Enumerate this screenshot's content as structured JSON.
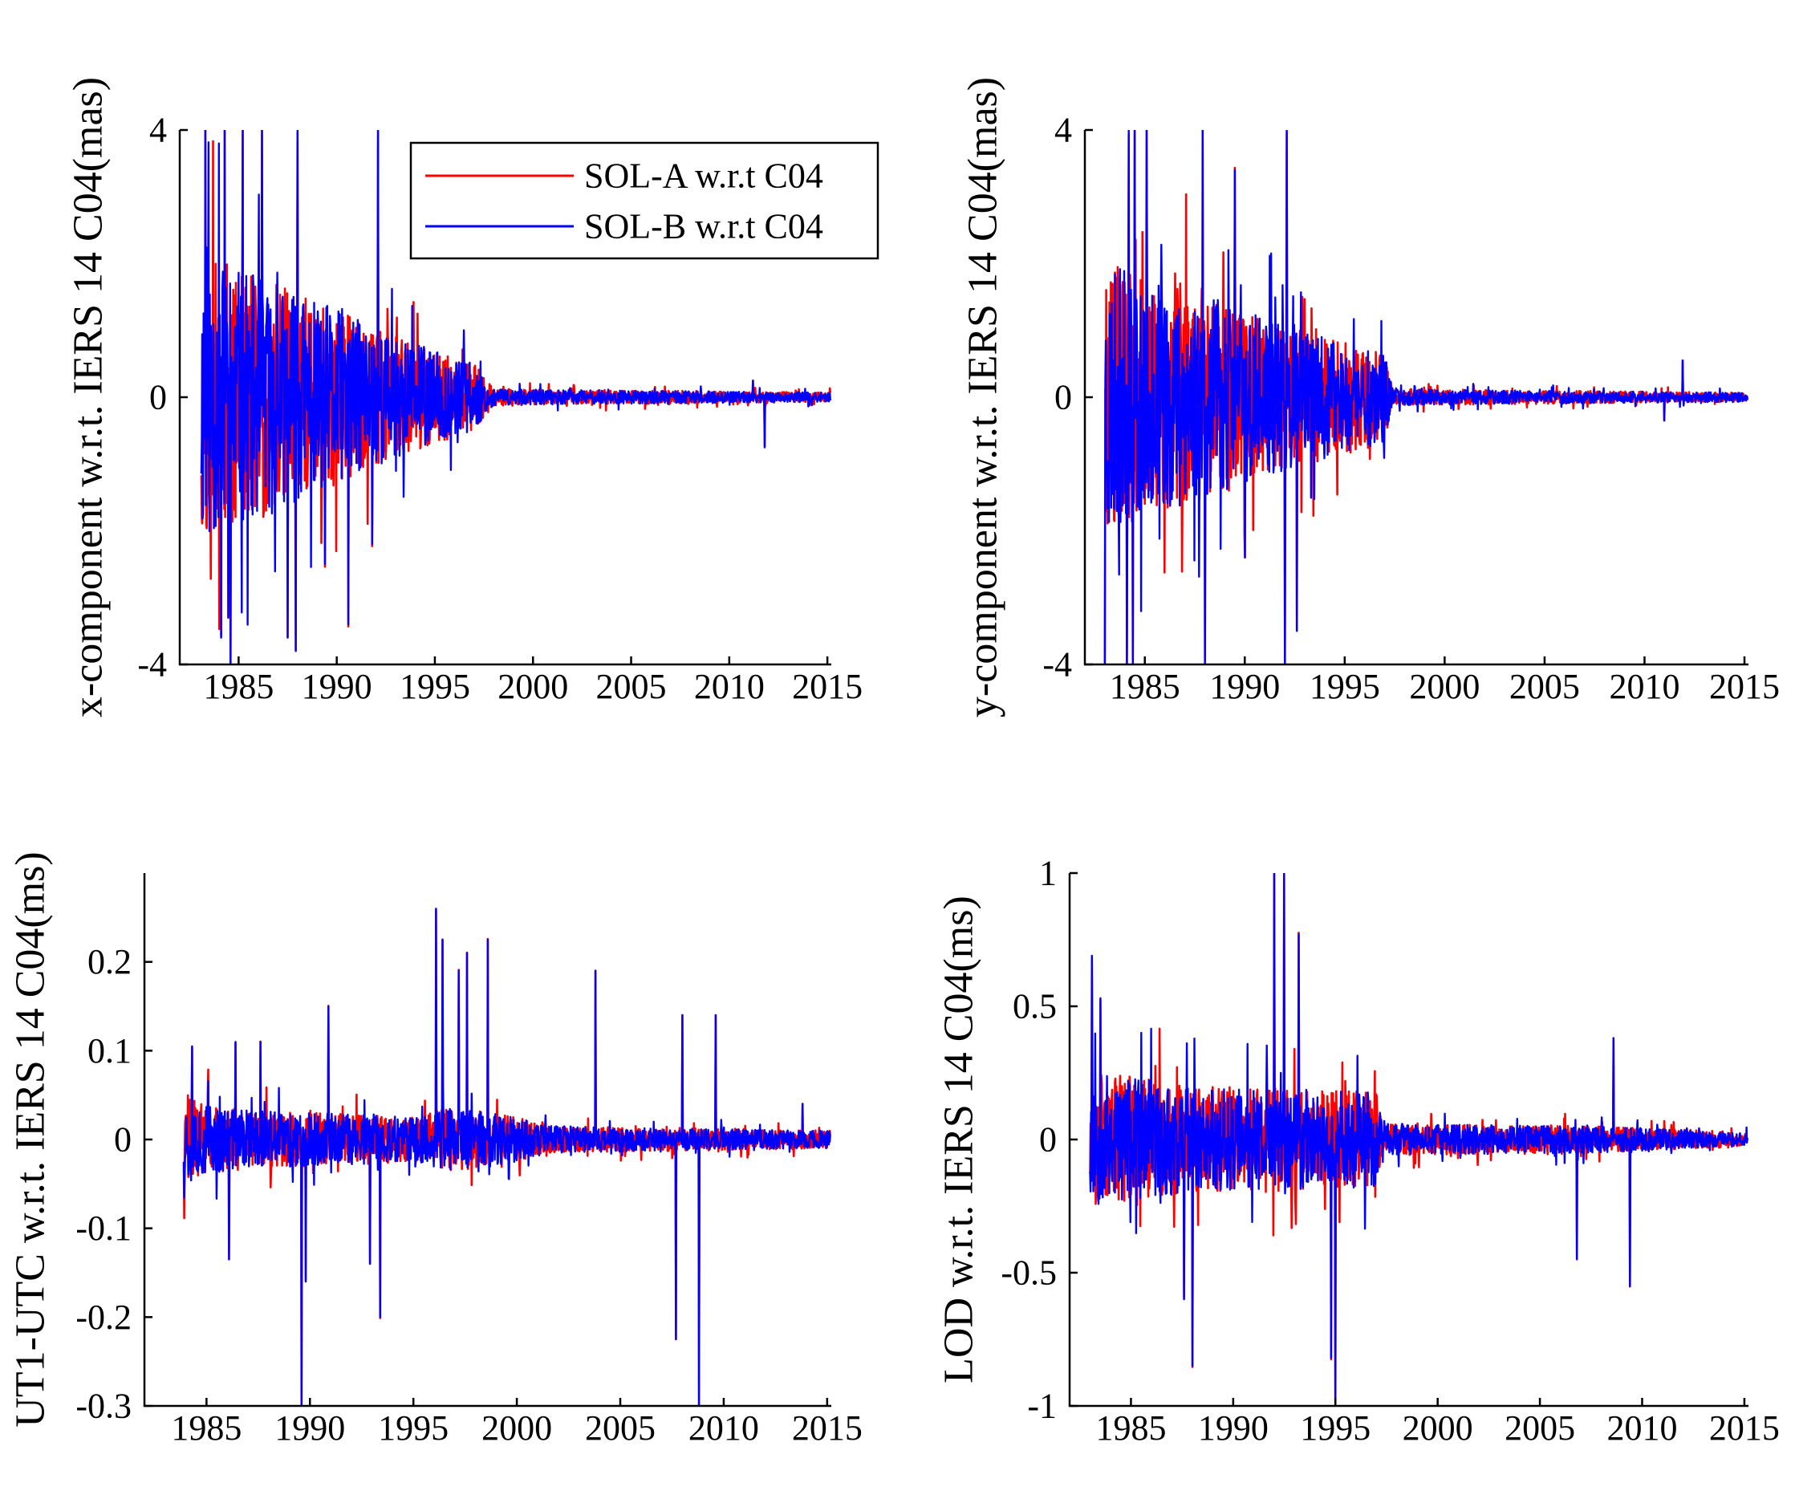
{
  "chart_data": [
    {
      "type": "line",
      "panel": "top-left",
      "title": "",
      "xlabel": "",
      "ylabel": "x-component w.r.t. IERS 14 C04(mas)",
      "xlim": [
        1982,
        2015.2
      ],
      "ylim": [
        -4,
        4
      ],
      "x_ticks": [
        1985,
        1990,
        1995,
        2000,
        2005,
        2010,
        2015
      ],
      "x_tick_labels": [
        "1985",
        "1990",
        "1995",
        "2000",
        "2005",
        "2010",
        "2015"
      ],
      "y_ticks": [
        -4,
        0,
        4
      ],
      "y_tick_labels": [
        "-4",
        "0",
        "4"
      ],
      "x_start": 1983.1,
      "amplitude_envelope": [
        [
          1983.1,
          2.2
        ],
        [
          1986,
          1.8
        ],
        [
          1990,
          1.3
        ],
        [
          1993,
          0.9
        ],
        [
          1997,
          0.5
        ],
        [
          1998,
          0.12
        ],
        [
          2015,
          0.07
        ]
      ],
      "spikes": [
        {
          "x": 1983.3,
          "y": 4
        },
        {
          "x": 1984.3,
          "y": 4
        },
        {
          "x": 1984.6,
          "y": 4
        },
        {
          "x": 1985.2,
          "y": 4
        },
        {
          "x": 1986.2,
          "y": 4
        },
        {
          "x": 1988.0,
          "y": 4
        },
        {
          "x": 1992.1,
          "y": 4
        },
        {
          "x": 1984.1,
          "y": -3.6
        },
        {
          "x": 1984.6,
          "y": -4
        },
        {
          "x": 1987.5,
          "y": -3.6
        },
        {
          "x": 1987.9,
          "y": -3.8
        },
        {
          "x": 1990.6,
          "y": -3.4
        },
        {
          "x": 1989.4,
          "y": -2.5
        },
        {
          "x": 1991.8,
          "y": -2.2
        },
        {
          "x": 2011.8,
          "y": -0.75
        },
        {
          "x": 2011.2,
          "y": 0.25
        }
      ],
      "series": [
        {
          "name": "SOL-A w.r.t C04",
          "color": "#ff0000",
          "noise_seed": 11
        },
        {
          "name": "SOL-B w.r.t C04",
          "color": "#0000ff",
          "noise_seed": 11
        }
      ],
      "legend": {
        "show": true,
        "position": "top-right",
        "entries": [
          "SOL-A w.r.t C04",
          "SOL-B w.r.t C04"
        ]
      }
    },
    {
      "type": "line",
      "panel": "top-right",
      "title": "",
      "xlabel": "",
      "ylabel": "y-component w.r.t. IERS 14 C04(mas)",
      "xlim": [
        1982,
        2015.2
      ],
      "ylim": [
        -4,
        4
      ],
      "x_ticks": [
        1985,
        1990,
        1995,
        2000,
        2005,
        2010,
        2015
      ],
      "x_tick_labels": [
        "1985",
        "1990",
        "1995",
        "2000",
        "2005",
        "2010",
        "2015"
      ],
      "y_ticks": [
        -4,
        0,
        4
      ],
      "y_tick_labels": [
        "-4",
        "0",
        "4"
      ],
      "x_start": 1983.0,
      "amplitude_envelope": [
        [
          1983.0,
          2.0
        ],
        [
          1986,
          1.7
        ],
        [
          1990,
          1.3
        ],
        [
          1994,
          0.9
        ],
        [
          1997,
          0.7
        ],
        [
          1997.4,
          0.12
        ],
        [
          2015,
          0.07
        ]
      ],
      "spikes": [
        {
          "x": 1984.2,
          "y": 4
        },
        {
          "x": 1984.5,
          "y": 4
        },
        {
          "x": 1985.1,
          "y": 4
        },
        {
          "x": 1987.9,
          "y": 4
        },
        {
          "x": 1992.1,
          "y": 4
        },
        {
          "x": 1989.5,
          "y": 3.4
        },
        {
          "x": 1983.0,
          "y": -4
        },
        {
          "x": 1984.1,
          "y": -4
        },
        {
          "x": 1984.4,
          "y": -4
        },
        {
          "x": 1988.0,
          "y": -4
        },
        {
          "x": 1992.0,
          "y": -4
        },
        {
          "x": 1992.6,
          "y": -3.5
        },
        {
          "x": 1990.0,
          "y": -2.4
        },
        {
          "x": 2011.9,
          "y": 0.55
        },
        {
          "x": 2011.0,
          "y": -0.35
        }
      ],
      "series": [
        {
          "name": "SOL-A w.r.t C04",
          "color": "#ff0000",
          "noise_seed": 23
        },
        {
          "name": "SOL-B w.r.t C04",
          "color": "#0000ff",
          "noise_seed": 23
        }
      ],
      "legend": {
        "show": false
      }
    },
    {
      "type": "line",
      "panel": "bottom-left",
      "title": "",
      "xlabel": "",
      "ylabel": "UT1-UTC w.r.t. IERS 14 C04(ms)",
      "xlim": [
        1982,
        2015.2
      ],
      "ylim": [
        -0.3,
        0.3
      ],
      "x_ticks": [
        1985,
        1990,
        1995,
        2000,
        2005,
        2010,
        2015
      ],
      "x_tick_labels": [
        "1985",
        "1990",
        "1995",
        "2000",
        "2005",
        "2010",
        "2015"
      ],
      "y_ticks": [
        -0.3,
        -0.2,
        -0.1,
        0,
        0.1,
        0.2
      ],
      "y_tick_labels": [
        "-0.3",
        "-0.2",
        "-0.1",
        "0",
        "0.1",
        "0.2"
      ],
      "x_start": 1983.9,
      "amplitude_envelope": [
        [
          1983.9,
          0.05
        ],
        [
          1986,
          0.035
        ],
        [
          1995,
          0.025
        ],
        [
          1996.5,
          0.035
        ],
        [
          1999,
          0.03
        ],
        [
          2002,
          0.015
        ],
        [
          2015,
          0.01
        ]
      ],
      "spikes": [
        {
          "x": 1984.3,
          "y": 0.105
        },
        {
          "x": 1986.4,
          "y": 0.11
        },
        {
          "x": 1987.6,
          "y": 0.11
        },
        {
          "x": 1990.9,
          "y": 0.15
        },
        {
          "x": 1996.1,
          "y": 0.26
        },
        {
          "x": 1996.4,
          "y": 0.225
        },
        {
          "x": 1997.2,
          "y": 0.19
        },
        {
          "x": 1997.6,
          "y": 0.21
        },
        {
          "x": 1998.6,
          "y": 0.225
        },
        {
          "x": 2003.8,
          "y": 0.19
        },
        {
          "x": 2008.0,
          "y": 0.14
        },
        {
          "x": 2009.6,
          "y": 0.14
        },
        {
          "x": 1989.6,
          "y": -0.3
        },
        {
          "x": 1989.8,
          "y": -0.16
        },
        {
          "x": 1993.4,
          "y": -0.2
        },
        {
          "x": 2007.7,
          "y": -0.225
        },
        {
          "x": 2008.8,
          "y": -0.3
        },
        {
          "x": 1986.1,
          "y": -0.135
        },
        {
          "x": 1992.9,
          "y": -0.14
        },
        {
          "x": 2013.8,
          "y": 0.04
        }
      ],
      "series": [
        {
          "name": "SOL-A w.r.t C04",
          "color": "#ff0000",
          "noise_seed": 37
        },
        {
          "name": "SOL-B w.r.t C04",
          "color": "#0000ff",
          "noise_seed": 37
        }
      ],
      "legend": {
        "show": false
      }
    },
    {
      "type": "line",
      "panel": "bottom-right",
      "title": "",
      "xlabel": "",
      "ylabel": "LOD w.r.t. IERS 14 C04(ms)",
      "xlim": [
        1982,
        2015.2
      ],
      "ylim": [
        -1,
        1
      ],
      "x_ticks": [
        1985,
        1990,
        1995,
        2000,
        2005,
        2010,
        2015
      ],
      "x_tick_labels": [
        "1985",
        "1990",
        "1995",
        "2000",
        "2005",
        "2010",
        "2015"
      ],
      "y_ticks": [
        -1,
        -0.5,
        0,
        0.5,
        1
      ],
      "y_tick_labels": [
        "-1",
        "-0.5",
        "0",
        "0.5",
        "1"
      ],
      "x_start": 1983.0,
      "amplitude_envelope": [
        [
          1983.0,
          0.25
        ],
        [
          1988,
          0.2
        ],
        [
          1997,
          0.18
        ],
        [
          1997.3,
          0.06
        ],
        [
          2008,
          0.05
        ],
        [
          2015,
          0.025
        ]
      ],
      "spikes": [
        {
          "x": 1983.1,
          "y": 0.69
        },
        {
          "x": 1983.5,
          "y": 0.53
        },
        {
          "x": 1992.0,
          "y": 1
        },
        {
          "x": 1992.5,
          "y": 1
        },
        {
          "x": 1993.2,
          "y": 0.77
        },
        {
          "x": 2008.6,
          "y": 0.38
        },
        {
          "x": 1988.0,
          "y": -0.85
        },
        {
          "x": 1994.8,
          "y": -0.82
        },
        {
          "x": 1995.0,
          "y": -1
        },
        {
          "x": 2006.8,
          "y": -0.45
        },
        {
          "x": 2009.4,
          "y": -0.55
        },
        {
          "x": 1987.6,
          "y": -0.6
        }
      ],
      "series": [
        {
          "name": "SOL-A w.r.t C04",
          "color": "#ff0000",
          "noise_seed": 53
        },
        {
          "name": "SOL-B w.r.t C04",
          "color": "#0000ff",
          "noise_seed": 53
        }
      ],
      "legend": {
        "show": false
      }
    }
  ]
}
